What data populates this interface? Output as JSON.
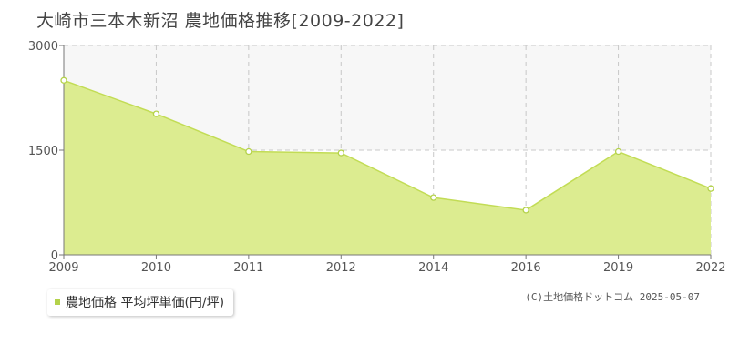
{
  "title": "大崎市三本木新沼 農地価格推移[2009-2022]",
  "legend": {
    "label": "農地価格 平均坪単価(円/坪)"
  },
  "credit": "(C)土地価格ドットコム 2025-05-07",
  "colors": {
    "fill": "#dcec90",
    "line": "#c2dc55",
    "marker_fill": "#ffffff",
    "marker_stroke": "#b4d24a",
    "grid": "#c8c8c8",
    "axis": "#777777",
    "legend_swatch": "#b4d24a",
    "band": "#f7f7f7"
  },
  "chart_data": {
    "type": "area",
    "x": [
      "2009",
      "2010",
      "2011",
      "2012",
      "2014",
      "2016",
      "2019",
      "2022"
    ],
    "series": [
      {
        "values": [
          2500,
          2020,
          1480,
          1460,
          820,
          640,
          1480,
          950
        ]
      }
    ],
    "ylim": [
      0,
      3000
    ],
    "yticks": [
      "0",
      "1500",
      "3000"
    ],
    "grid": true
  }
}
